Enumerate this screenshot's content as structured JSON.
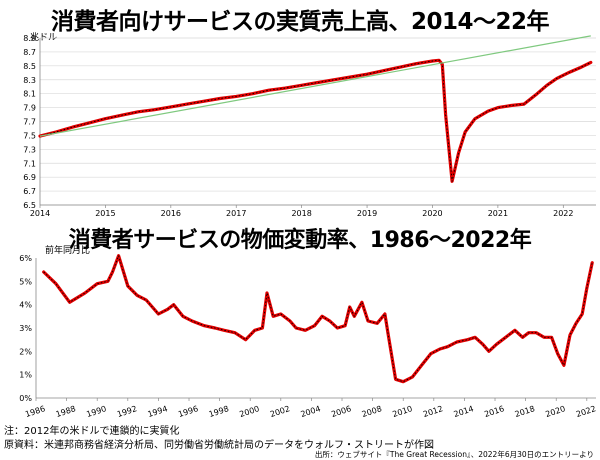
{
  "chart_data": [
    {
      "type": "line",
      "title": "消費者向けサービスの実質売上高、2014～22年",
      "unit_label": "兆ドル",
      "x_ticks": [
        "2014",
        "2015",
        "2016",
        "2017",
        "2018",
        "2019",
        "2020",
        "2021",
        "2022"
      ],
      "y_ticks": [
        "8.9",
        "8.7",
        "8.5",
        "8.3",
        "8.1",
        "7.9",
        "7.7",
        "7.5",
        "7.3",
        "7.1",
        "6.9",
        "6.7",
        "6.5"
      ],
      "ylim": [
        6.5,
        8.9
      ],
      "xlim": [
        2014.0,
        2022.5
      ],
      "grid": "horizontal",
      "series": [
        {
          "color": "#e00000",
          "points": [
            [
              2014.0,
              7.49
            ],
            [
              2014.25,
              7.55
            ],
            [
              2014.5,
              7.62
            ],
            [
              2014.75,
              7.68
            ],
            [
              2015.0,
              7.74
            ],
            [
              2015.25,
              7.79
            ],
            [
              2015.5,
              7.84
            ],
            [
              2015.75,
              7.87
            ],
            [
              2016.0,
              7.91
            ],
            [
              2016.25,
              7.95
            ],
            [
              2016.5,
              7.99
            ],
            [
              2016.75,
              8.03
            ],
            [
              2017.0,
              8.06
            ],
            [
              2017.25,
              8.1
            ],
            [
              2017.5,
              8.15
            ],
            [
              2017.75,
              8.18
            ],
            [
              2018.0,
              8.22
            ],
            [
              2018.25,
              8.26
            ],
            [
              2018.5,
              8.3
            ],
            [
              2018.75,
              8.34
            ],
            [
              2019.0,
              8.38
            ],
            [
              2019.25,
              8.43
            ],
            [
              2019.5,
              8.48
            ],
            [
              2019.75,
              8.53
            ],
            [
              2020.0,
              8.57
            ],
            [
              2020.1,
              8.58
            ],
            [
              2020.15,
              8.52
            ],
            [
              2020.2,
              7.8
            ],
            [
              2020.3,
              6.84
            ],
            [
              2020.4,
              7.25
            ],
            [
              2020.5,
              7.55
            ],
            [
              2020.65,
              7.74
            ],
            [
              2020.85,
              7.85
            ],
            [
              2021.0,
              7.9
            ],
            [
              2021.2,
              7.93
            ],
            [
              2021.4,
              7.95
            ],
            [
              2021.6,
              8.1
            ],
            [
              2021.75,
              8.22
            ],
            [
              2021.9,
              8.32
            ],
            [
              2022.1,
              8.41
            ],
            [
              2022.25,
              8.47
            ],
            [
              2022.42,
              8.55
            ]
          ]
        },
        {
          "color": "#7fc97f",
          "points": [
            [
              2014.0,
              7.49
            ],
            [
              2022.42,
              8.93
            ]
          ]
        }
      ]
    },
    {
      "type": "line",
      "title": "消費者サービスの物価変動率、1986～2022年",
      "unit_label": "前年同月比",
      "x_ticks": [
        "1986",
        "1988",
        "1990",
        "1992",
        "1994",
        "1996",
        "1998",
        "2000",
        "2002",
        "2004",
        "2006",
        "2008",
        "2010",
        "2012",
        "2014",
        "2016",
        "2018",
        "2020",
        "2022"
      ],
      "y_ticks": [
        "6%",
        "5%",
        "4%",
        "3%",
        "2%",
        "1%",
        "0%"
      ],
      "ylim": [
        0,
        6
      ],
      "xlim": [
        1986,
        2022.6
      ],
      "grid": "none",
      "series": [
        {
          "color": "#e00000",
          "points": [
            [
              1986.5,
              5.4
            ],
            [
              1987.3,
              4.9
            ],
            [
              1988.2,
              4.1
            ],
            [
              1989.2,
              4.5
            ],
            [
              1990.0,
              4.9
            ],
            [
              1990.7,
              5.0
            ],
            [
              1991.0,
              5.4
            ],
            [
              1991.4,
              6.1
            ],
            [
              1992.0,
              4.8
            ],
            [
              1992.6,
              4.4
            ],
            [
              1993.2,
              4.2
            ],
            [
              1994.0,
              3.6
            ],
            [
              1994.6,
              3.8
            ],
            [
              1995.0,
              4.0
            ],
            [
              1995.6,
              3.5
            ],
            [
              1996.2,
              3.3
            ],
            [
              1997.0,
              3.1
            ],
            [
              1997.7,
              3.0
            ],
            [
              1998.3,
              2.9
            ],
            [
              1999.0,
              2.8
            ],
            [
              1999.7,
              2.5
            ],
            [
              2000.3,
              2.9
            ],
            [
              2000.8,
              3.0
            ],
            [
              2001.1,
              4.5
            ],
            [
              2001.5,
              3.5
            ],
            [
              2002.0,
              3.6
            ],
            [
              2002.6,
              3.3
            ],
            [
              2003.0,
              3.0
            ],
            [
              2003.6,
              2.9
            ],
            [
              2004.2,
              3.1
            ],
            [
              2004.7,
              3.5
            ],
            [
              2005.2,
              3.3
            ],
            [
              2005.7,
              3.0
            ],
            [
              2006.2,
              3.1
            ],
            [
              2006.5,
              3.9
            ],
            [
              2006.8,
              3.5
            ],
            [
              2007.3,
              4.1
            ],
            [
              2007.7,
              3.3
            ],
            [
              2008.3,
              3.2
            ],
            [
              2008.8,
              3.6
            ],
            [
              2009.0,
              2.8
            ],
            [
              2009.5,
              0.8
            ],
            [
              2010.0,
              0.7
            ],
            [
              2010.6,
              0.9
            ],
            [
              2011.2,
              1.4
            ],
            [
              2011.8,
              1.9
            ],
            [
              2012.4,
              2.1
            ],
            [
              2012.9,
              2.2
            ],
            [
              2013.5,
              2.4
            ],
            [
              2014.2,
              2.5
            ],
            [
              2014.7,
              2.6
            ],
            [
              2015.2,
              2.3
            ],
            [
              2015.6,
              2.0
            ],
            [
              2016.1,
              2.3
            ],
            [
              2016.7,
              2.6
            ],
            [
              2017.3,
              2.9
            ],
            [
              2017.8,
              2.6
            ],
            [
              2018.2,
              2.8
            ],
            [
              2018.7,
              2.8
            ],
            [
              2019.2,
              2.6
            ],
            [
              2019.7,
              2.6
            ],
            [
              2020.1,
              1.9
            ],
            [
              2020.5,
              1.4
            ],
            [
              2020.9,
              2.7
            ],
            [
              2021.3,
              3.2
            ],
            [
              2021.7,
              3.6
            ],
            [
              2022.0,
              4.7
            ],
            [
              2022.35,
              5.8
            ]
          ]
        }
      ]
    }
  ],
  "footnotes": {
    "note": "注：2012年の米ドルで連鎖的に実質化",
    "source_materials": "原資料：米連邦商務省経済分析局、同労働省労働統計局のデータをウォルフ・ストリートが作図",
    "credit": "出所：ウェブサイト『The Great Recession』、2022年6月30日のエントリーより"
  }
}
